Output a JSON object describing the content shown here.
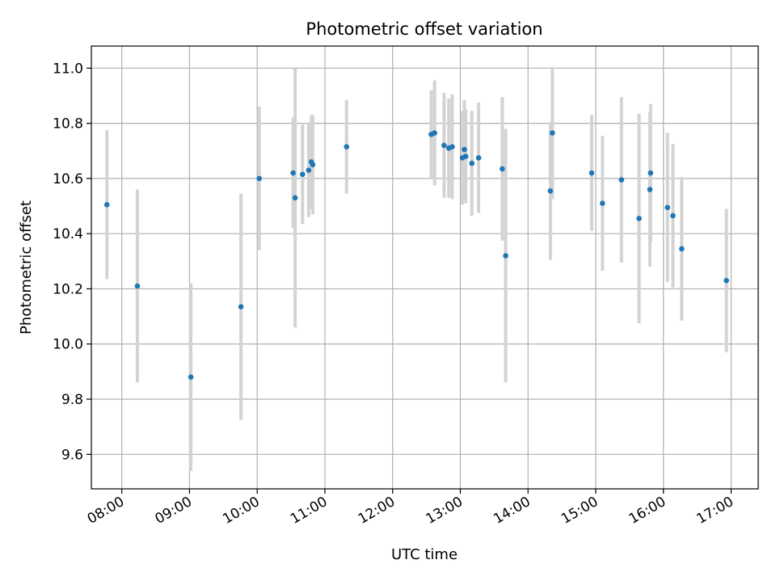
{
  "chart_data": {
    "type": "scatter",
    "title": "Photometric offset variation",
    "xlabel": "UTC time",
    "ylabel": "Photometric offset",
    "xlim": [
      7.55,
      17.4
    ],
    "ylim": [
      9.475,
      11.08
    ],
    "grid": true,
    "x_ticks": [
      {
        "value": 8,
        "label": "08:00"
      },
      {
        "value": 9,
        "label": "09:00"
      },
      {
        "value": 10,
        "label": "10:00"
      },
      {
        "value": 11,
        "label": "11:00"
      },
      {
        "value": 12,
        "label": "12:00"
      },
      {
        "value": 13,
        "label": "13:00"
      },
      {
        "value": 14,
        "label": "14:00"
      },
      {
        "value": 15,
        "label": "15:00"
      },
      {
        "value": 16,
        "label": "16:00"
      },
      {
        "value": 17,
        "label": "17:00"
      }
    ],
    "y_ticks": [
      {
        "value": 9.6,
        "label": "9.6"
      },
      {
        "value": 9.8,
        "label": "9.8"
      },
      {
        "value": 10.0,
        "label": "10.0"
      },
      {
        "value": 10.2,
        "label": "10.2"
      },
      {
        "value": 10.4,
        "label": "10.4"
      },
      {
        "value": 10.6,
        "label": "10.6"
      },
      {
        "value": 10.8,
        "label": "10.8"
      },
      {
        "value": 11.0,
        "label": "11.0"
      }
    ],
    "colors": {
      "point": "#1f77b4",
      "errorbar": "#d3d3d3",
      "grid": "#b0b0b0",
      "axes": "#000000"
    },
    "series": [
      {
        "name": "Photometric offset",
        "points": [
          {
            "x": 7.78,
            "y": 10.505,
            "err": 0.27
          },
          {
            "x": 8.23,
            "y": 10.21,
            "err": 0.35
          },
          {
            "x": 9.02,
            "y": 9.88,
            "err": 0.34
          },
          {
            "x": 9.76,
            "y": 10.135,
            "err": 0.41
          },
          {
            "x": 10.03,
            "y": 10.6,
            "err": 0.26
          },
          {
            "x": 10.53,
            "y": 10.62,
            "err": 0.2
          },
          {
            "x": 10.56,
            "y": 10.53,
            "err": 0.47
          },
          {
            "x": 10.67,
            "y": 10.615,
            "err": 0.18
          },
          {
            "x": 10.76,
            "y": 10.63,
            "err": 0.17
          },
          {
            "x": 10.8,
            "y": 10.66,
            "err": 0.17
          },
          {
            "x": 10.82,
            "y": 10.65,
            "err": 0.18
          },
          {
            "x": 11.32,
            "y": 10.715,
            "err": 0.17
          },
          {
            "x": 12.57,
            "y": 10.76,
            "err": 0.16
          },
          {
            "x": 12.62,
            "y": 10.765,
            "err": 0.19
          },
          {
            "x": 12.76,
            "y": 10.72,
            "err": 0.19
          },
          {
            "x": 12.83,
            "y": 10.71,
            "err": 0.18
          },
          {
            "x": 12.88,
            "y": 10.715,
            "err": 0.19
          },
          {
            "x": 13.03,
            "y": 10.675,
            "err": 0.17
          },
          {
            "x": 13.06,
            "y": 10.705,
            "err": 0.18
          },
          {
            "x": 13.08,
            "y": 10.68,
            "err": 0.17
          },
          {
            "x": 13.17,
            "y": 10.655,
            "err": 0.19
          },
          {
            "x": 13.27,
            "y": 10.675,
            "err": 0.2
          },
          {
            "x": 13.62,
            "y": 10.635,
            "err": 0.26
          },
          {
            "x": 13.67,
            "y": 10.32,
            "err": 0.46
          },
          {
            "x": 14.33,
            "y": 10.555,
            "err": 0.25
          },
          {
            "x": 14.36,
            "y": 10.765,
            "err": 0.24
          },
          {
            "x": 14.94,
            "y": 10.62,
            "err": 0.21
          },
          {
            "x": 15.1,
            "y": 10.51,
            "err": 0.245
          },
          {
            "x": 15.38,
            "y": 10.595,
            "err": 0.3
          },
          {
            "x": 15.64,
            "y": 10.455,
            "err": 0.38
          },
          {
            "x": 15.8,
            "y": 10.56,
            "err": 0.28
          },
          {
            "x": 15.81,
            "y": 10.62,
            "err": 0.25
          },
          {
            "x": 16.06,
            "y": 10.495,
            "err": 0.27
          },
          {
            "x": 16.14,
            "y": 10.465,
            "err": 0.26
          },
          {
            "x": 16.27,
            "y": 10.345,
            "err": 0.26
          },
          {
            "x": 16.93,
            "y": 10.23,
            "err": 0.26
          }
        ]
      }
    ]
  }
}
